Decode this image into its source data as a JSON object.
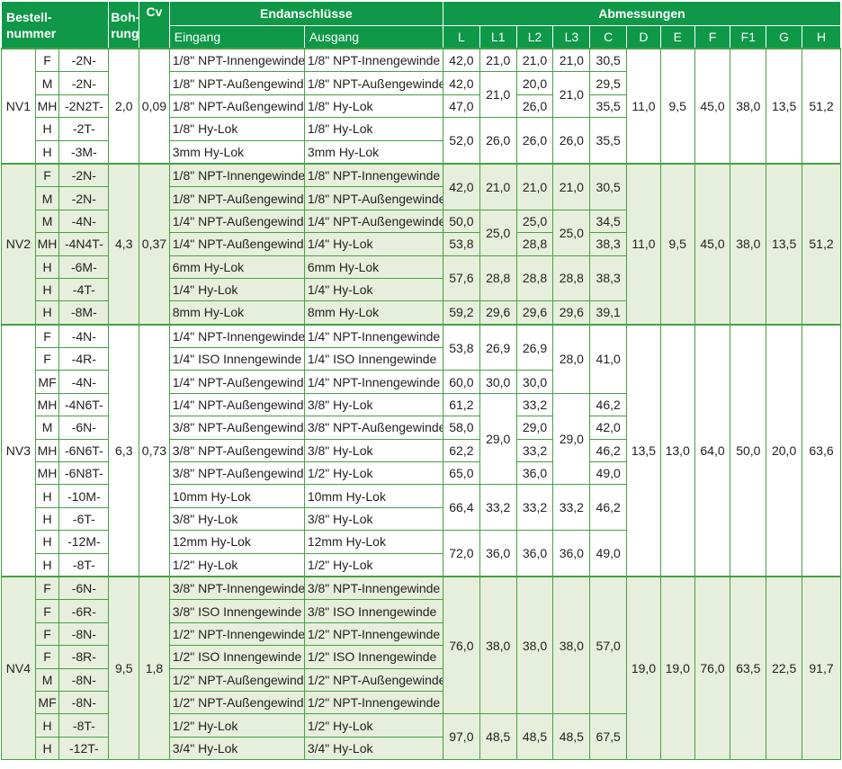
{
  "header": {
    "bestellnummer": "Bestell-\nnummer",
    "bohrung": "Boh-\nrung",
    "cv": "Cv",
    "endanschluesse": "Endanschlüsse",
    "eingang": "Eingang",
    "ausgang": "Ausgang",
    "abmessungen": "Abmessungen",
    "dims": [
      "L",
      "L1",
      "L2",
      "L3",
      "C",
      "D",
      "E",
      "F",
      "F1",
      "G",
      "H"
    ]
  },
  "groups": [
    {
      "name": "NV1",
      "bohrung": "2,0",
      "cv": "0,09",
      "rows": [
        {
          "type": "F",
          "code": "-2N-",
          "eingang": "1/8\" NPT-Innengewinde",
          "ausgang": "1/8\" NPT-Innengewinde"
        },
        {
          "type": "M",
          "code": "-2N-",
          "eingang": "1/8\" NPT-Außengewinde",
          "ausgang": "1/8\" NPT-Außengewinde"
        },
        {
          "type": "MH",
          "code": "-2N2T-",
          "eingang": "1/8\" NPT-Außengewinde",
          "ausgang": "1/8\" Hy-Lok"
        },
        {
          "type": "H",
          "code": "-2T-",
          "eingang": "1/8\" Hy-Lok",
          "ausgang": "1/8\" Hy-Lok"
        },
        {
          "type": "H",
          "code": "-3M-",
          "eingang": "3mm Hy-Lok",
          "ausgang": "3mm Hy-Lok"
        }
      ],
      "L": [
        "42,0",
        "42,0",
        "47,0",
        "52,0"
      ],
      "L1": [
        "21,0",
        "21,0",
        "26,0"
      ],
      "L2": [
        "21,0",
        "20,0",
        "26,0",
        "26,0"
      ],
      "L3": [
        "21,0",
        "21,0",
        "26,0"
      ],
      "C": [
        "30,5",
        "29,5",
        "35,5",
        "35,5"
      ],
      "D": "11,0",
      "E": "9,5",
      "F": "45,0",
      "F1": "38,0",
      "G": "13,5",
      "H": "51,2"
    },
    {
      "name": "NV2",
      "bohrung": "4,3",
      "cv": "0,37",
      "rows": [
        {
          "type": "F",
          "code": "-2N-",
          "eingang": "1/8\" NPT-Innengewinde",
          "ausgang": "1/8\" NPT-Innengewinde"
        },
        {
          "type": "M",
          "code": "-2N-",
          "eingang": "1/8\" NPT-Außengewinde",
          "ausgang": "1/8\" NPT-Außengewinde"
        },
        {
          "type": "M",
          "code": "-4N-",
          "eingang": "1/4\" NPT-Außengewinde",
          "ausgang": "1/4\" NPT-Außengewinde"
        },
        {
          "type": "MH",
          "code": "-4N4T-",
          "eingang": "1/4\" NPT-Außengewinde",
          "ausgang": "1/4\" Hy-Lok"
        },
        {
          "type": "H",
          "code": "-6M-",
          "eingang": "6mm Hy-Lok",
          "ausgang": "6mm Hy-Lok"
        },
        {
          "type": "H",
          "code": "-4T-",
          "eingang": "1/4\" Hy-Lok",
          "ausgang": "1/4\" Hy-Lok"
        },
        {
          "type": "H",
          "code": "-8M-",
          "eingang": "8mm Hy-Lok",
          "ausgang": "8mm Hy-Lok"
        }
      ],
      "L": [
        "42,0",
        "50,0",
        "53,8",
        "57,6",
        "59,2"
      ],
      "L1": [
        "21,0",
        "25,0",
        "28,8",
        "29,6"
      ],
      "L2": [
        "21,0",
        "25,0",
        "28,8",
        "28,8",
        "29,6"
      ],
      "L3": [
        "21,0",
        "25,0",
        "28,8",
        "29,6"
      ],
      "C": [
        "30,5",
        "34,5",
        "38,3",
        "38,3",
        "39,1"
      ],
      "D": "11,0",
      "E": "9,5",
      "F": "45,0",
      "F1": "38,0",
      "G": "13,5",
      "H": "51,2"
    },
    {
      "name": "NV3",
      "bohrung": "6,3",
      "cv": "0,73",
      "rows": [
        {
          "type": "F",
          "code": "-4N-",
          "eingang": "1/4\" NPT-Innengewinde",
          "ausgang": "1/4\" NPT-Innengewinde"
        },
        {
          "type": "F",
          "code": "-4R-",
          "eingang": "1/4\" ISO Innengewinde",
          "ausgang": "1/4\" ISO Innengewinde"
        },
        {
          "type": "MF",
          "code": "-4N-",
          "eingang": "1/4\" NPT-Außengewinde",
          "ausgang": "1/4\" NPT-Innengewinde"
        },
        {
          "type": "MH",
          "code": "-4N6T-",
          "eingang": "1/4\" NPT-Außengewinde",
          "ausgang": "3/8\" Hy-Lok"
        },
        {
          "type": "M",
          "code": "-6N-",
          "eingang": "3/8\" NPT-Außengewinde",
          "ausgang": "3/8\" NPT-Außengewinde"
        },
        {
          "type": "MH",
          "code": "-6N6T-",
          "eingang": "3/8\" NPT-Außengewinde",
          "ausgang": "3/8\" Hy-Lok"
        },
        {
          "type": "MH",
          "code": "-6N8T-",
          "eingang": "3/8\" NPT-Außengewinde",
          "ausgang": "1/2\" Hy-Lok"
        },
        {
          "type": "H",
          "code": "-10M-",
          "eingang": "10mm Hy-Lok",
          "ausgang": "10mm Hy-Lok"
        },
        {
          "type": "H",
          "code": "-6T-",
          "eingang": "3/8\" Hy-Lok",
          "ausgang": "3/8\" Hy-Lok"
        },
        {
          "type": "H",
          "code": "-12M-",
          "eingang": "12mm Hy-Lok",
          "ausgang": "12mm Hy-Lok"
        },
        {
          "type": "H",
          "code": "-8T-",
          "eingang": "1/2\" Hy-Lok",
          "ausgang": "1/2\" Hy-Lok"
        }
      ],
      "L": [
        "53,8",
        "60,0",
        "61,2",
        "58,0",
        "62,2",
        "65,0",
        "66,4",
        "72,0"
      ],
      "L1": [
        "26,9",
        "30,0",
        "29,0",
        "33,2",
        "36,0"
      ],
      "L2": [
        "26,9",
        "30,0",
        "33,2",
        "29,0",
        "33,2",
        "36,0",
        "33,2",
        "36,0"
      ],
      "L3": [
        "28,0",
        "29,0",
        "33,2",
        "36,0"
      ],
      "C": [
        "41,0",
        "46,2",
        "42,0",
        "46,2",
        "49,0",
        "46,2",
        "49,0"
      ],
      "D": "13,5",
      "E": "13,0",
      "F": "64,0",
      "F1": "50,0",
      "G": "20,0",
      "H": "63,6"
    },
    {
      "name": "NV4",
      "bohrung": "9,5",
      "cv": "1,8",
      "rows": [
        {
          "type": "F",
          "code": "-6N-",
          "eingang": "3/8\" NPT-Innengewinde",
          "ausgang": "3/8\" NPT-Innengewinde"
        },
        {
          "type": "F",
          "code": "-6R-",
          "eingang": "3/8\" ISO Innengewinde",
          "ausgang": "3/8\" ISO Innengewinde"
        },
        {
          "type": "F",
          "code": "-8N-",
          "eingang": "1/2\" NPT-Innengewinde",
          "ausgang": "1/2\" NPT-Innengewinde"
        },
        {
          "type": "F",
          "code": "-8R-",
          "eingang": "1/2\" ISO Innengewinde",
          "ausgang": "1/2\" ISO Innengewinde"
        },
        {
          "type": "M",
          "code": "-8N-",
          "eingang": "1/2\" NPT-Außengewinde",
          "ausgang": "1/2\" NPT-Außengewinde"
        },
        {
          "type": "MF",
          "code": "-8N-",
          "eingang": "1/2\" NPT-Außengewinde",
          "ausgang": "1/2\" NPT-Innengewinde"
        },
        {
          "type": "H",
          "code": "-8T-",
          "eingang": "1/2\" Hy-Lok",
          "ausgang": "1/2\" Hy-Lok"
        },
        {
          "type": "H",
          "code": "-12T-",
          "eingang": "3/4\" Hy-Lok",
          "ausgang": "3/4\" Hy-Lok"
        }
      ],
      "L": [
        "76,0",
        "97,0"
      ],
      "L1": [
        "38,0",
        "48,5"
      ],
      "L2": [
        "38,0",
        "48,5"
      ],
      "L3": [
        "38,0",
        "48,5"
      ],
      "C": [
        "57,0",
        "67,5"
      ],
      "D": "19,0",
      "E": "19,0",
      "F": "76,0",
      "F1": "63,5",
      "G": "22,5",
      "H": "91,7"
    }
  ]
}
